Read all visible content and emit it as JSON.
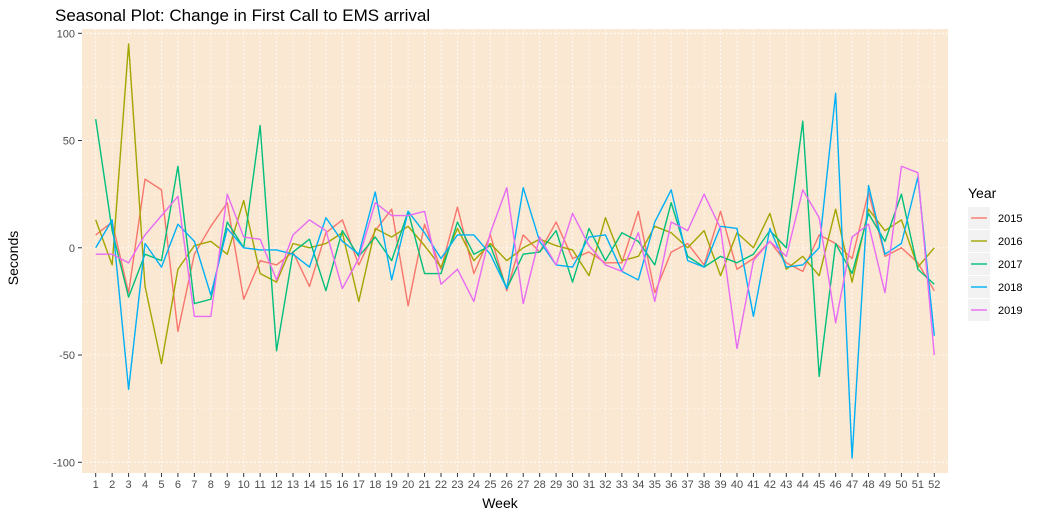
{
  "chart_data": {
    "type": "line",
    "title": "Seasonal Plot: Change in First Call to EMS arrival",
    "xlabel": "Week",
    "ylabel": "Seconds",
    "xlim": [
      1,
      52
    ],
    "ylim": [
      -105,
      102
    ],
    "y_ticks": [
      -100,
      -50,
      0,
      50,
      100
    ],
    "x": [
      1,
      2,
      3,
      4,
      5,
      6,
      7,
      8,
      9,
      10,
      11,
      12,
      13,
      14,
      15,
      16,
      17,
      18,
      19,
      20,
      21,
      22,
      23,
      24,
      25,
      26,
      27,
      28,
      29,
      30,
      31,
      32,
      33,
      34,
      35,
      36,
      37,
      38,
      39,
      40,
      41,
      42,
      43,
      44,
      45,
      46,
      47,
      48,
      49,
      50,
      51,
      52
    ],
    "grid": true,
    "panel_background": "#fae8d2",
    "legend": {
      "title": "Year",
      "position": "right"
    },
    "series": [
      {
        "name": "2015",
        "color": "#F8766D",
        "values": [
          6,
          12,
          -21,
          32,
          27,
          -39,
          -3,
          10,
          21,
          -24,
          -6,
          -8,
          -2,
          -18,
          7,
          13,
          -8,
          8,
          18,
          -27,
          11,
          -10,
          19,
          -12,
          6,
          -20,
          6,
          -2,
          12,
          -5,
          -2,
          -7,
          -7,
          17,
          -21,
          -2,
          2,
          -8,
          17,
          -10,
          -5,
          3,
          -7,
          -11,
          6,
          2,
          -5,
          26,
          -4,
          0,
          -7,
          -20
        ]
      },
      {
        "name": "2016",
        "color": "#A3A500",
        "values": [
          13,
          -8,
          95,
          -18,
          -54,
          -10,
          1,
          3,
          -3,
          22,
          -12,
          -16,
          2,
          0,
          2,
          7,
          -25,
          9,
          5,
          10,
          1,
          -9,
          9,
          -6,
          2,
          -6,
          0,
          4,
          1,
          -1,
          -13,
          14,
          -6,
          -4,
          10,
          7,
          0,
          8,
          -13,
          7,
          0,
          16,
          -10,
          -4,
          -13,
          18,
          -16,
          18,
          8,
          13,
          -9,
          0
        ]
      },
      {
        "name": "2017",
        "color": "#00BF7D",
        "values": [
          60,
          8,
          -23,
          -3,
          -6,
          38,
          -26,
          -24,
          12,
          0,
          57,
          -48,
          -2,
          4,
          -20,
          8,
          -4,
          5,
          -6,
          17,
          -12,
          -12,
          12,
          -3,
          1,
          -19,
          -3,
          -2,
          8,
          -16,
          9,
          -6,
          7,
          3,
          -8,
          21,
          -4,
          -9,
          -4,
          -7,
          -3,
          8,
          0,
          59,
          -60,
          2,
          -12,
          16,
          3,
          25,
          -10,
          -17
        ]
      },
      {
        "name": "2018",
        "color": "#00B0F6",
        "values": [
          0,
          13,
          -66,
          2,
          -9,
          11,
          3,
          -22,
          9,
          0,
          -1,
          -1,
          -3,
          -9,
          14,
          3,
          -3,
          26,
          -15,
          17,
          7,
          -5,
          6,
          6,
          -3,
          -19,
          28,
          3,
          -8,
          -9,
          5,
          6,
          -11,
          -15,
          12,
          27,
          -6,
          -9,
          10,
          9,
          -32,
          9,
          -9,
          -8,
          0,
          72,
          -98,
          29,
          -3,
          2,
          33,
          -41
        ]
      },
      {
        "name": "2019",
        "color": "#E76BF3",
        "values": [
          -3,
          -3,
          -7,
          6,
          15,
          24,
          -32,
          -32,
          25,
          5,
          4,
          -15,
          6,
          13,
          8,
          -19,
          -5,
          21,
          15,
          15,
          17,
          -17,
          -10,
          -25,
          7,
          28,
          -26,
          5,
          -8,
          16,
          1,
          -8,
          -11,
          7,
          -25,
          12,
          8,
          25,
          9,
          -47,
          -6,
          3,
          -4,
          27,
          14,
          -35,
          5,
          11,
          -21,
          38,
          35,
          -50
        ]
      }
    ]
  }
}
